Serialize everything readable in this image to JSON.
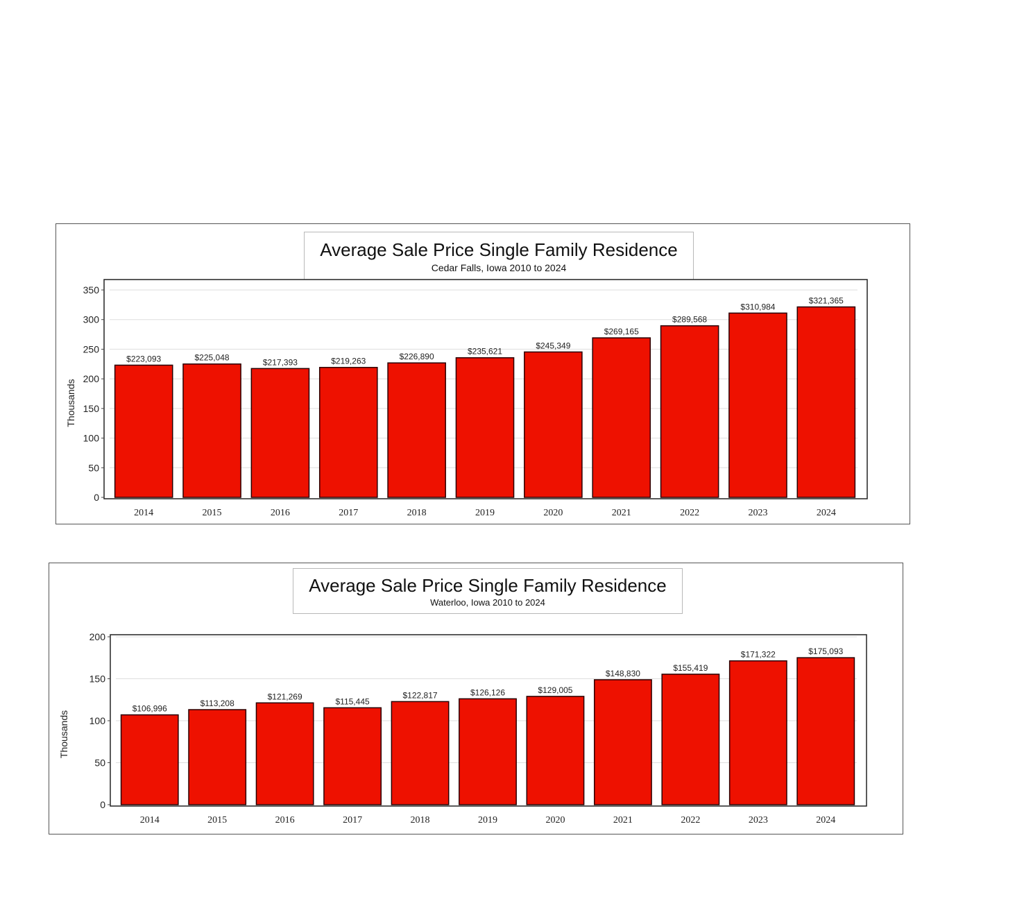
{
  "charts": [
    {
      "title": "Average Sale Price Single Family Residence",
      "subtitle": "Cedar Falls, Iowa 2010 to 2024"
    },
    {
      "title": "Average Sale Price Single Family Residence",
      "subtitle": "Waterloo, Iowa  2010 to 2024"
    }
  ],
  "chart_data": [
    {
      "type": "bar",
      "title": "Average Sale Price Single Family Residence",
      "subtitle": "Cedar Falls, Iowa 2010 to 2024",
      "ylabel": "Thousands",
      "xlabel": "",
      "ylim": [
        0,
        350
      ],
      "yticks": [
        0,
        50,
        100,
        150,
        200,
        250,
        300,
        350
      ],
      "categories": [
        "2014",
        "2015",
        "2016",
        "2017",
        "2018",
        "2019",
        "2020",
        "2021",
        "2022",
        "2023",
        "2024"
      ],
      "values": [
        223.093,
        225.048,
        217.393,
        219.263,
        226.89,
        235.621,
        245.349,
        269.165,
        289.568,
        310.984,
        321.365
      ],
      "data_labels": [
        "$223,093",
        "$225,048",
        "$217,393",
        "$219,263",
        "$226,890",
        "$235,621",
        "$245,349",
        "$269,165",
        "$289,568",
        "$310,984",
        "$321,365"
      ],
      "bar_color": "#ee1100",
      "grid": true
    },
    {
      "type": "bar",
      "title": "Average Sale Price Single Family Residence",
      "subtitle": "Waterloo, Iowa  2010 to 2024",
      "ylabel": "Thousands",
      "xlabel": "",
      "ylim": [
        0,
        200
      ],
      "yticks": [
        0,
        50,
        100,
        150,
        200
      ],
      "categories": [
        "2014",
        "2015",
        "2016",
        "2017",
        "2018",
        "2019",
        "2020",
        "2021",
        "2022",
        "2023",
        "2024"
      ],
      "values": [
        106.996,
        113.208,
        121.269,
        115.445,
        122.817,
        126.126,
        129.005,
        148.83,
        155.419,
        171.322,
        175.093
      ],
      "data_labels": [
        "$106,996",
        "$113,208",
        "$121,269",
        "$115,445",
        "$122,817",
        "$126,126",
        "$129,005",
        "$148,830",
        "$155,419",
        "$171,322",
        "$175,093"
      ],
      "bar_color": "#ee1100",
      "grid": true
    }
  ]
}
